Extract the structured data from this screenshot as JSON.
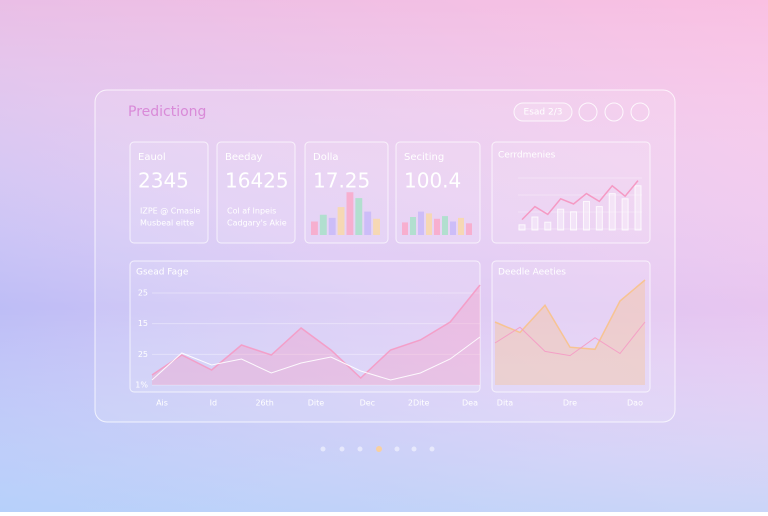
{
  "header": {
    "title": "Predictiong",
    "button": "Esad 2/3"
  },
  "stat_cards": [
    {
      "label": "Eauol",
      "value": 2345,
      "caption": [
        "IZPE @ Cmasie",
        "Musbeal eitte"
      ]
    },
    {
      "label": "Beeday",
      "value": 16425,
      "caption": [
        "Col af Inpeis",
        "Cadgary's Akie"
      ]
    },
    {
      "label": "Dolla",
      "value": 17.25,
      "bars": [
        30,
        45,
        38,
        62,
        95,
        82,
        52,
        36
      ]
    },
    {
      "label": "Seciting",
      "value": 100.4,
      "bars": [
        28,
        40,
        52,
        48,
        36,
        42,
        30,
        38,
        26
      ]
    }
  ],
  "mini_chart": {
    "title": "Cerrdmenies",
    "ylim": [
      0,
      100
    ],
    "line": [
      20,
      45,
      30,
      60,
      50,
      70,
      55,
      85,
      65,
      95
    ],
    "bars": [
      10,
      25,
      15,
      40,
      35,
      55,
      45,
      70,
      60,
      85
    ]
  },
  "main_chart": {
    "title": "Gsead Fage",
    "y_labels": [
      "25",
      "15",
      "25",
      "1%"
    ],
    "x_labels": [
      "Ais",
      "Id",
      "26th",
      "Dite",
      "Dec",
      "2Dite",
      "Dea"
    ],
    "ylim": [
      0,
      100
    ],
    "series": [
      {
        "color": "#f59ac4",
        "values": [
          10,
          30,
          15,
          40,
          30,
          57,
          35,
          7,
          35,
          45,
          63,
          100
        ]
      },
      {
        "color": "#ffffff",
        "values": [
          5,
          32,
          20,
          26,
          12,
          22,
          28,
          14,
          5,
          12,
          26,
          48
        ]
      }
    ]
  },
  "side_chart": {
    "title": "Deedle Aeeties",
    "x_labels": [
      "Dita",
      "Dre",
      "Dao"
    ],
    "ylim": [
      0,
      100
    ],
    "series": [
      {
        "color": "#f8c28a",
        "values": [
          60,
          50,
          76,
          36,
          34,
          80,
          100
        ]
      },
      {
        "color": "#f59ac4",
        "values": [
          40,
          55,
          32,
          28,
          45,
          30,
          60
        ]
      }
    ]
  }
}
